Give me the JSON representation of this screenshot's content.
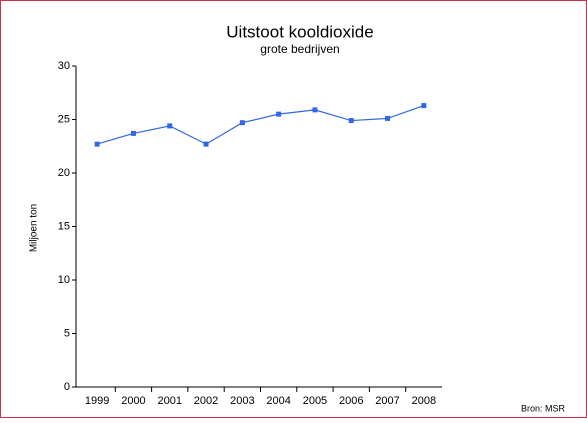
{
  "chart_data": {
    "type": "line",
    "title": "Uitstoot kooldioxide",
    "subtitle": "grote bedrijven",
    "y_label": "Miljoen ton",
    "source": "Bron: MSR",
    "categories": [
      "1999",
      "2000",
      "2001",
      "2002",
      "2003",
      "2004",
      "2005",
      "2006",
      "2007",
      "2008"
    ],
    "series": [
      {
        "name": "Uitstoot",
        "color": "#3366e6",
        "values": [
          22.7,
          23.7,
          24.4,
          22.7,
          24.7,
          25.5,
          25.9,
          24.9,
          25.1,
          26.3
        ]
      }
    ],
    "ylim": [
      0,
      30
    ],
    "yticks": [
      0,
      5,
      10,
      15,
      20,
      25,
      30
    ],
    "grid": false,
    "legend": false
  }
}
